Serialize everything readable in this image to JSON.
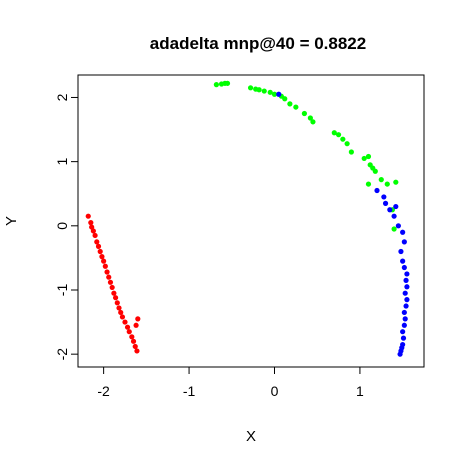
{
  "chart_data": {
    "type": "scatter",
    "title": "adadelta mnp@40 = 0.8822",
    "xlabel": "X",
    "ylabel": "Y",
    "xlim": [
      -2.3,
      1.75
    ],
    "ylim": [
      -2.2,
      2.35
    ],
    "x_ticks": [
      -2,
      -1,
      0,
      1
    ],
    "y_ticks": [
      -2,
      -1,
      0,
      1,
      2
    ],
    "grid": false,
    "legend": "none",
    "series": [
      {
        "color": "#ff0000",
        "points": [
          [
            -2.18,
            0.15
          ],
          [
            -2.15,
            0.05
          ],
          [
            -2.14,
            -0.02
          ],
          [
            -2.12,
            -0.08
          ],
          [
            -2.1,
            -0.15
          ],
          [
            -2.08,
            -0.25
          ],
          [
            -2.06,
            -0.32
          ],
          [
            -2.04,
            -0.4
          ],
          [
            -2.02,
            -0.48
          ],
          [
            -2.0,
            -0.55
          ],
          [
            -1.98,
            -0.63
          ],
          [
            -1.96,
            -0.72
          ],
          [
            -1.94,
            -0.8
          ],
          [
            -1.92,
            -0.88
          ],
          [
            -1.9,
            -0.96
          ],
          [
            -1.88,
            -1.05
          ],
          [
            -1.86,
            -1.12
          ],
          [
            -1.84,
            -1.2
          ],
          [
            -1.82,
            -1.28
          ],
          [
            -1.8,
            -1.35
          ],
          [
            -1.78,
            -1.42
          ],
          [
            -1.75,
            -1.5
          ],
          [
            -1.72,
            -1.58
          ],
          [
            -1.7,
            -1.65
          ],
          [
            -1.67,
            -1.73
          ],
          [
            -1.65,
            -1.8
          ],
          [
            -1.63,
            -1.88
          ],
          [
            -1.62,
            -1.55
          ],
          [
            -1.61,
            -1.95
          ],
          [
            -1.6,
            -1.45
          ]
        ]
      },
      {
        "color": "#00ff00",
        "points": [
          [
            -0.68,
            2.2
          ],
          [
            -0.62,
            2.21
          ],
          [
            -0.58,
            2.22
          ],
          [
            -0.55,
            2.22
          ],
          [
            -0.28,
            2.15
          ],
          [
            -0.22,
            2.13
          ],
          [
            -0.18,
            2.12
          ],
          [
            -0.12,
            2.1
          ],
          [
            -0.05,
            2.08
          ],
          [
            0.0,
            2.05
          ],
          [
            0.08,
            2.02
          ],
          [
            0.12,
            1.98
          ],
          [
            0.18,
            1.9
          ],
          [
            0.25,
            1.85
          ],
          [
            0.35,
            1.75
          ],
          [
            0.42,
            1.68
          ],
          [
            0.45,
            1.62
          ],
          [
            0.7,
            1.45
          ],
          [
            0.75,
            1.42
          ],
          [
            0.8,
            1.35
          ],
          [
            0.85,
            1.28
          ],
          [
            0.9,
            1.15
          ],
          [
            1.05,
            1.05
          ],
          [
            1.1,
            1.08
          ],
          [
            1.12,
            0.95
          ],
          [
            1.15,
            0.9
          ],
          [
            1.18,
            0.85
          ],
          [
            1.1,
            0.65
          ],
          [
            1.25,
            0.72
          ],
          [
            1.32,
            0.65
          ],
          [
            1.38,
            0.25
          ],
          [
            1.42,
            0.68
          ],
          [
            1.4,
            -0.05
          ]
        ]
      },
      {
        "color": "#0000ff",
        "points": [
          [
            0.05,
            2.05
          ],
          [
            1.2,
            0.55
          ],
          [
            1.28,
            0.45
          ],
          [
            1.3,
            0.35
          ],
          [
            1.35,
            0.25
          ],
          [
            1.4,
            0.15
          ],
          [
            1.42,
            0.3
          ],
          [
            1.45,
            0.0
          ],
          [
            1.5,
            -0.1
          ],
          [
            1.52,
            -0.25
          ],
          [
            1.48,
            -0.4
          ],
          [
            1.5,
            -0.55
          ],
          [
            1.52,
            -0.65
          ],
          [
            1.55,
            -0.75
          ],
          [
            1.54,
            -0.85
          ],
          [
            1.55,
            -0.95
          ],
          [
            1.53,
            -1.05
          ],
          [
            1.55,
            -1.15
          ],
          [
            1.54,
            -1.25
          ],
          [
            1.52,
            -1.35
          ],
          [
            1.53,
            -1.45
          ],
          [
            1.52,
            -1.55
          ],
          [
            1.5,
            -1.65
          ],
          [
            1.51,
            -1.75
          ],
          [
            1.5,
            -1.85
          ],
          [
            1.48,
            -1.95
          ],
          [
            1.47,
            -2.0
          ],
          [
            1.49,
            -1.9
          ]
        ]
      }
    ]
  }
}
